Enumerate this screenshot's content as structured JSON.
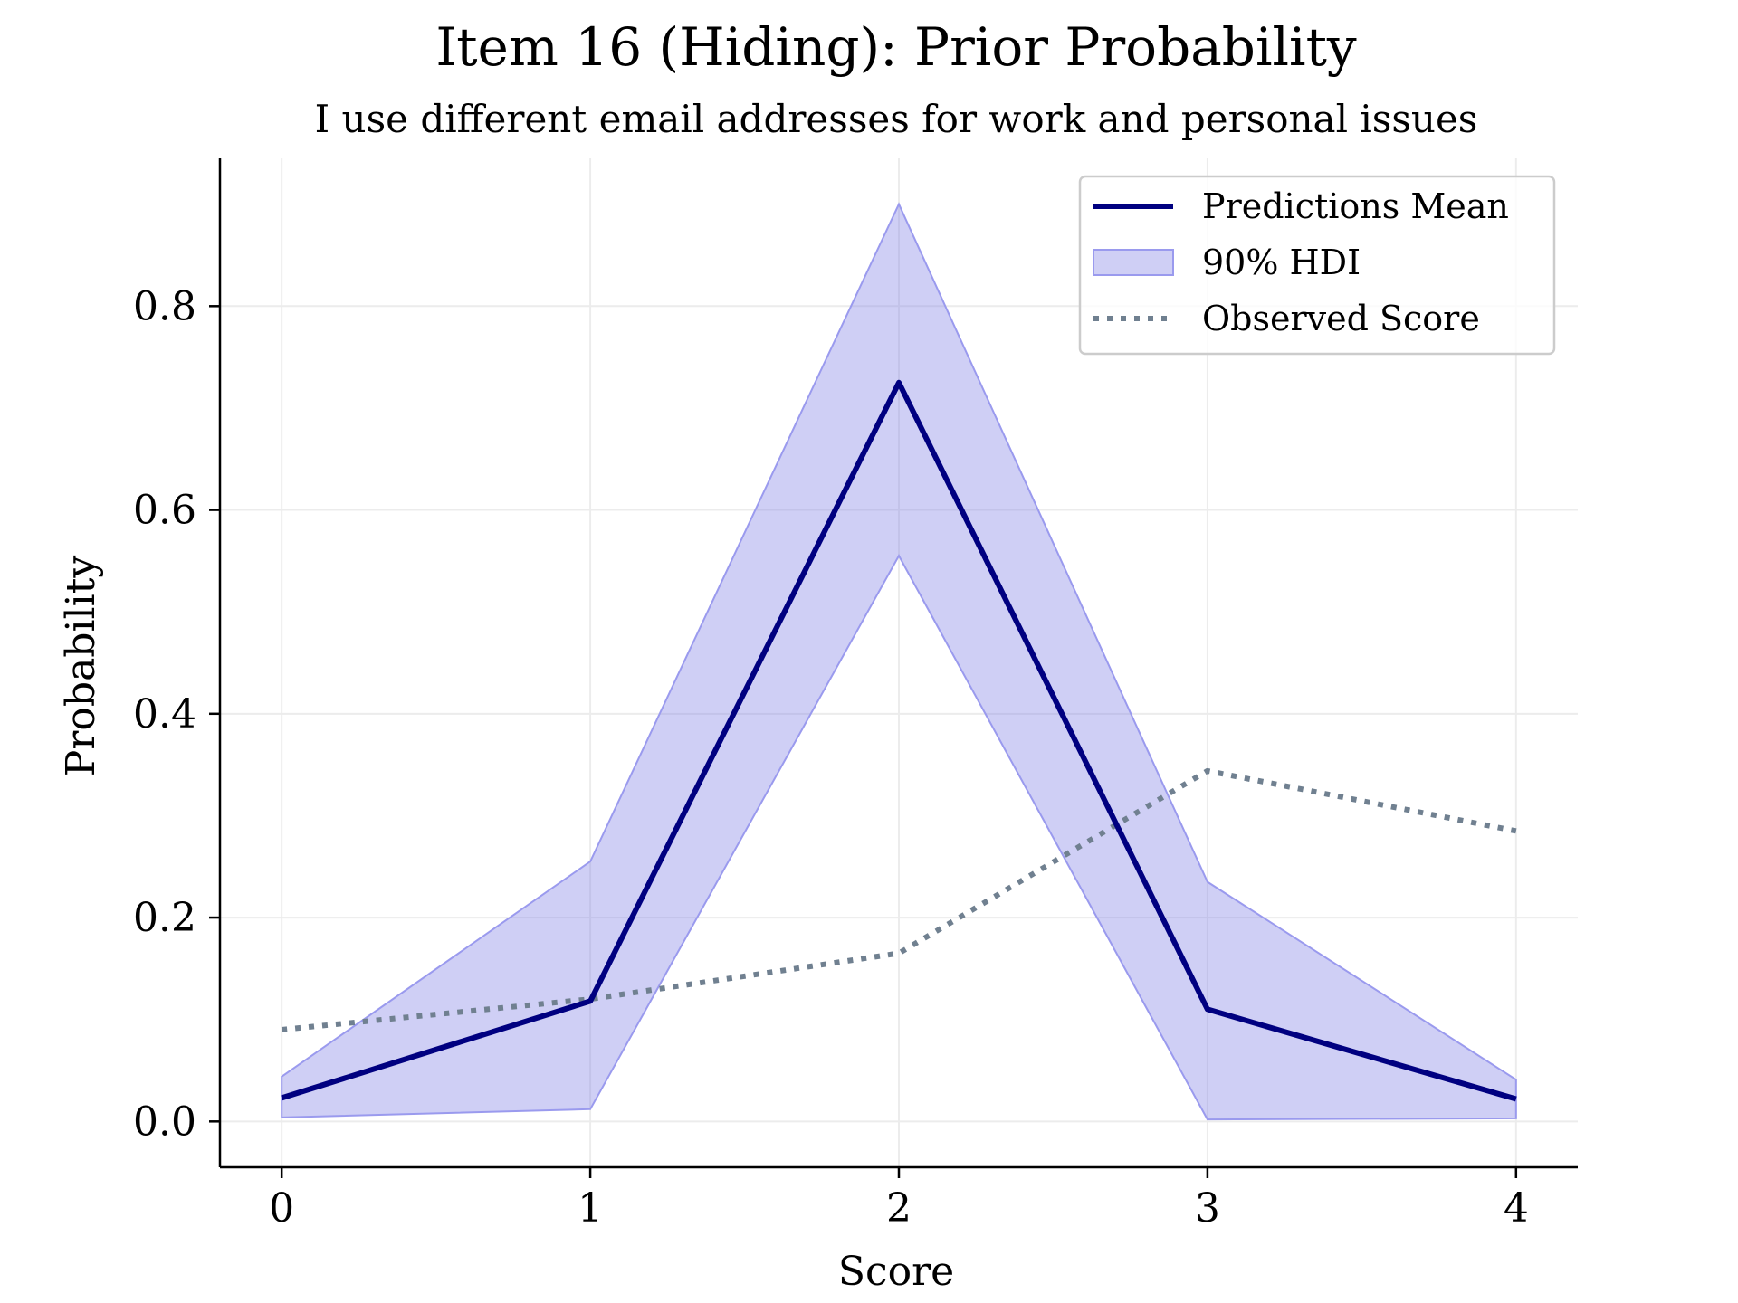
{
  "chart_data": {
    "type": "line",
    "title": "Item 16 (Hiding): Prior Probability",
    "subtitle": "I use different email addresses for work and personal issues",
    "xlabel": "Score",
    "ylabel": "Probability",
    "x": [
      0,
      1,
      2,
      3,
      4
    ],
    "xticks": [
      "0",
      "1",
      "2",
      "3",
      "4"
    ],
    "yticks": [
      "0.0",
      "0.2",
      "0.4",
      "0.6",
      "0.8"
    ],
    "xlim": [
      -0.2,
      4.2
    ],
    "ylim": [
      -0.045,
      0.945
    ],
    "grid": true,
    "legend_position": "top-right",
    "series": [
      {
        "name": "Predictions Mean",
        "style": "solid",
        "color": "#000080",
        "values": [
          0.023,
          0.118,
          0.725,
          0.11,
          0.022
        ]
      },
      {
        "name": "Observed Score",
        "style": "dotted",
        "color": "#708090",
        "values": [
          0.09,
          0.12,
          0.165,
          0.344,
          0.285
        ]
      }
    ],
    "band": {
      "name": "90% HDI",
      "color": "#8888e6",
      "edge_color": "#9a9aee",
      "lower": [
        0.004,
        0.012,
        0.555,
        0.002,
        0.003
      ],
      "upper": [
        0.044,
        0.255,
        0.9,
        0.235,
        0.041
      ]
    }
  }
}
